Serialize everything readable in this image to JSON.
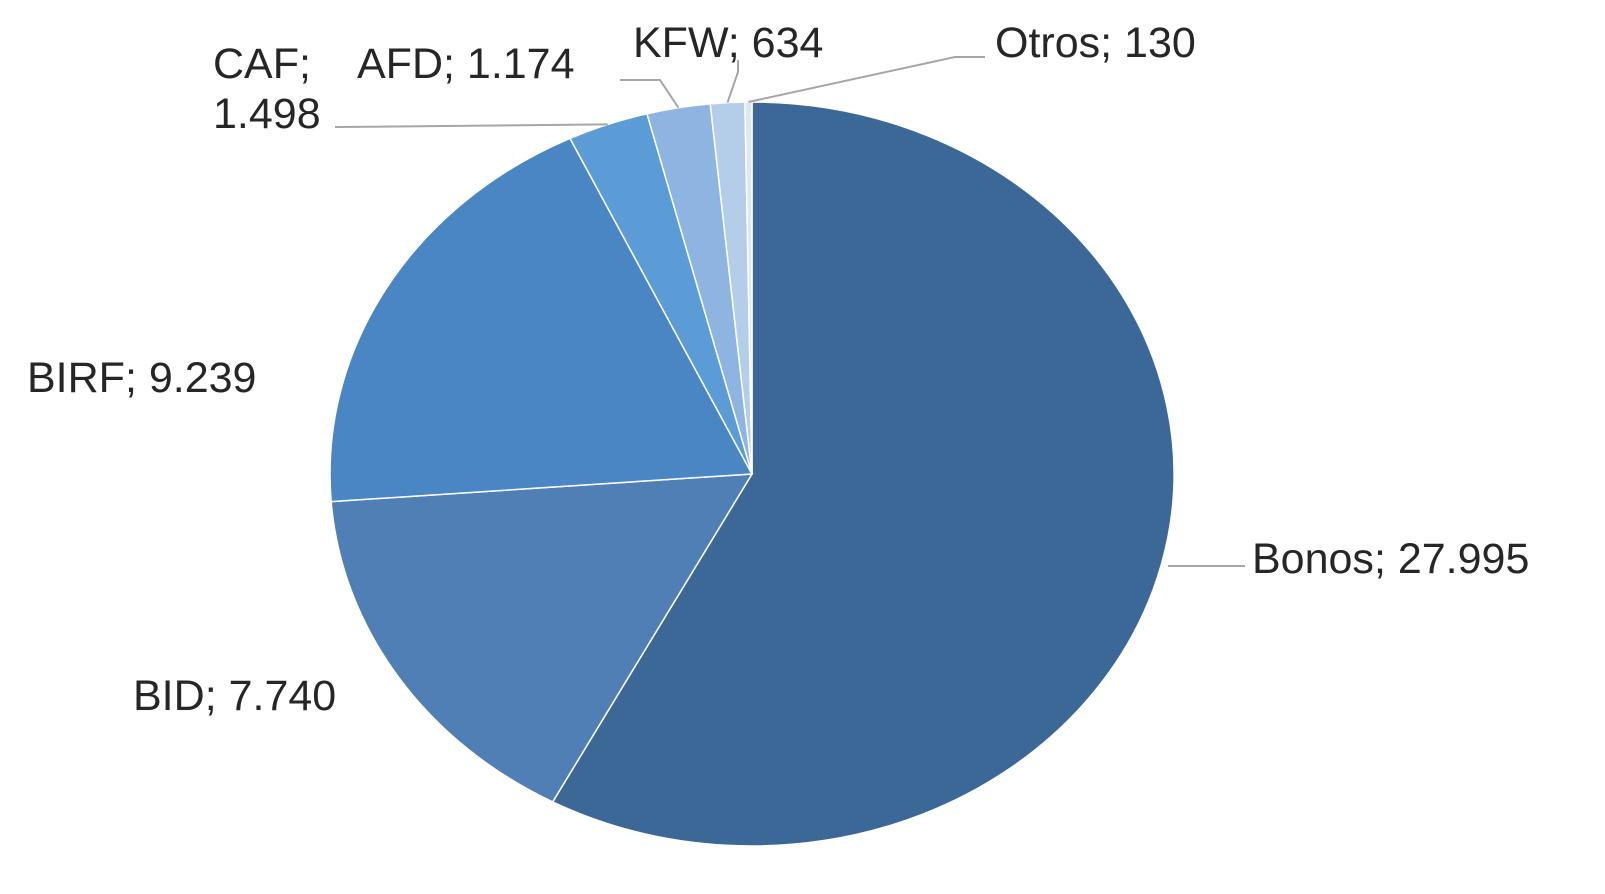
{
  "chart_data": {
    "type": "pie",
    "title": "",
    "categories": [
      "Bonos",
      "BID",
      "BIRF",
      "CAF",
      "AFD",
      "KFW",
      "Otros"
    ],
    "values": [
      27995,
      7740,
      9239,
      1498,
      1174,
      634,
      130
    ],
    "value_labels": [
      "27.995",
      "7.740",
      "9.239",
      "1.498",
      "1.174",
      "634",
      "130"
    ],
    "colors": [
      "#3b6896",
      "#4f7fb4",
      "#4b86c4",
      "#5b9bd6",
      "#8eb5e1",
      "#b4cde9",
      "#dce8f5"
    ],
    "legend": "none",
    "label_format": "category; value"
  }
}
